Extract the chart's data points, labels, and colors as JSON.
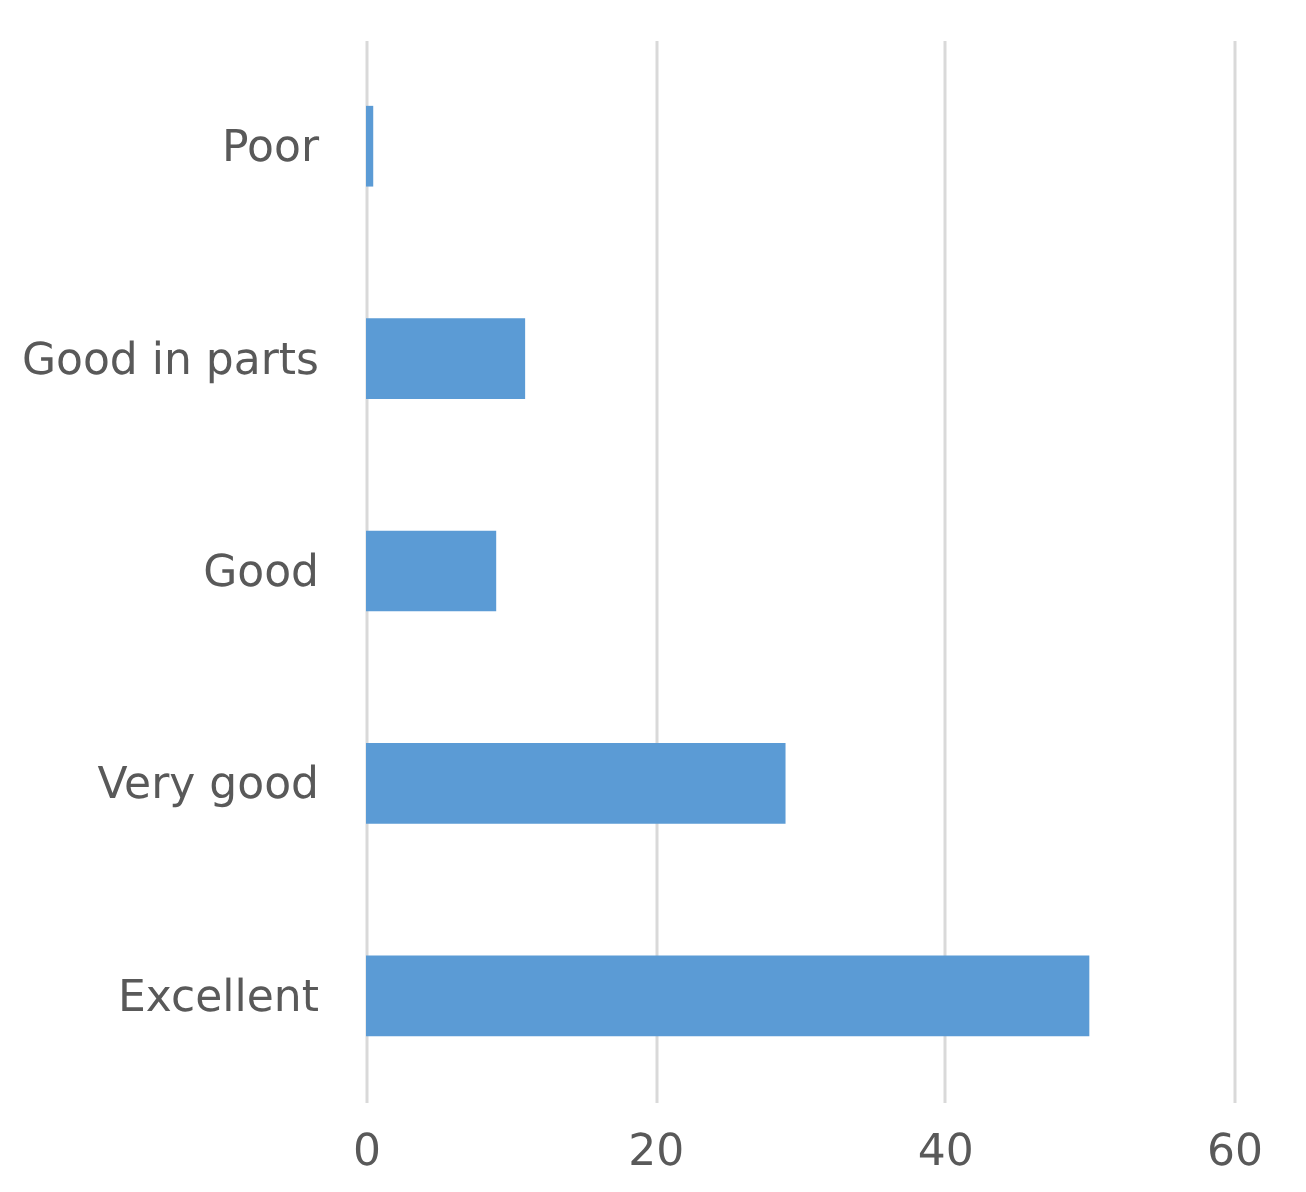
{
  "chart_data": {
    "type": "bar",
    "orientation": "horizontal",
    "categories": [
      "Poor",
      "Good in parts",
      "Good",
      "Very good",
      "Excellent"
    ],
    "values": [
      0.5,
      11,
      9,
      29,
      50
    ],
    "color": "#5b9bd5",
    "xlim": [
      0,
      60
    ],
    "xticks": [
      0,
      20,
      40,
      60
    ],
    "grid": "x"
  }
}
